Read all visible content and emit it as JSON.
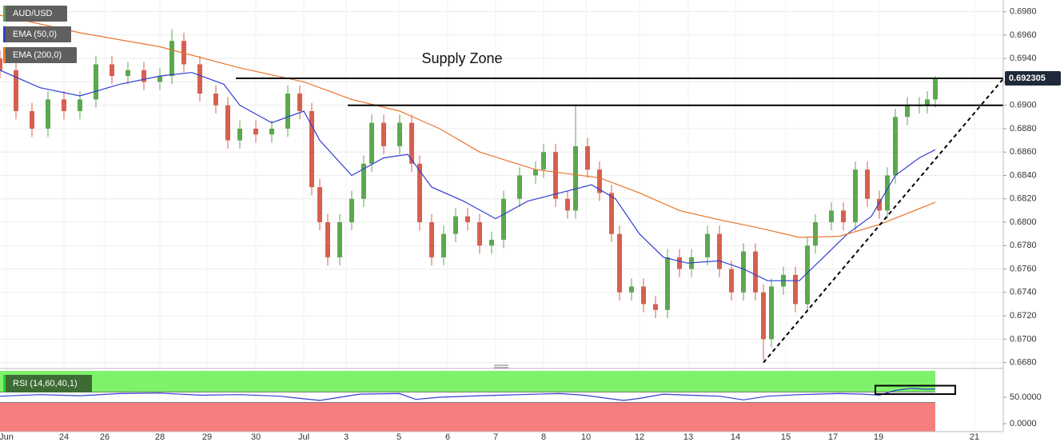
{
  "chart_data": [
    {
      "type": "candlestick",
      "xlim": [
        0,
        125.5
      ],
      "ylim": [
        0.6677,
        0.699
      ],
      "xticks": [
        {
          "value": 0.8,
          "label": "Jun"
        },
        {
          "value": 8,
          "label": "24"
        },
        {
          "value": 13.1,
          "label": "26"
        },
        {
          "value": 20,
          "label": "28"
        },
        {
          "value": 25.9,
          "label": "29"
        },
        {
          "value": 32,
          "label": "30"
        },
        {
          "value": 38,
          "label": "Jul"
        },
        {
          "value": 43.3,
          "label": "3"
        },
        {
          "value": 49.9,
          "label": "5"
        },
        {
          "value": 56,
          "label": "6"
        },
        {
          "value": 62,
          "label": "7"
        },
        {
          "value": 68,
          "label": "8"
        },
        {
          "value": 73.3,
          "label": "10"
        },
        {
          "value": 80,
          "label": "12"
        },
        {
          "value": 86.1,
          "label": "13"
        },
        {
          "value": 92,
          "label": "14"
        },
        {
          "value": 98.3,
          "label": "15"
        },
        {
          "value": 104.2,
          "label": "17"
        },
        {
          "value": 109.9,
          "label": "19"
        },
        {
          "value": 121.9,
          "label": "21"
        }
      ],
      "yticks": [
        {
          "value": 0.668,
          "label": "0.6680"
        },
        {
          "value": 0.67,
          "label": "0.6700"
        },
        {
          "value": 0.672,
          "label": "0.6720"
        },
        {
          "value": 0.674,
          "label": "0.6740"
        },
        {
          "value": 0.676,
          "label": "0.6760"
        },
        {
          "value": 0.678,
          "label": "0.6780"
        },
        {
          "value": 0.68,
          "label": "0.6800"
        },
        {
          "value": 0.682,
          "label": "0.6820"
        },
        {
          "value": 0.684,
          "label": "0.6840"
        },
        {
          "value": 0.686,
          "label": "0.6860"
        },
        {
          "value": 0.688,
          "label": "0.6880"
        },
        {
          "value": 0.69,
          "label": "0.6900"
        },
        {
          "value": 0.692,
          "label": "0.6920"
        },
        {
          "value": 0.694,
          "label": "0.6940"
        },
        {
          "value": 0.696,
          "label": "0.6960"
        },
        {
          "value": 0.698,
          "label": "0.6980"
        }
      ],
      "grid": true,
      "last_price": 0.692305,
      "annotation": "Supply Zone",
      "levels": [
        {
          "value": 0.6923,
          "x": [
            29.5,
            125.5
          ]
        },
        {
          "value": 0.69,
          "x": [
            43.5,
            125.5
          ]
        }
      ],
      "trendline": {
        "x": [
          95.5,
          125.5
        ],
        "y": [
          0.668,
          0.69226
        ]
      },
      "candles": {
        "name": "AUD/USD",
        "up_color": "#5ca84f",
        "down_color": "#d85f4f",
        "x": [
          0,
          2,
          4,
          6,
          8,
          10,
          12,
          14,
          16,
          18,
          20,
          21.5,
          23,
          25,
          27,
          28.5,
          30,
          32,
          34,
          36,
          37.5,
          39,
          40,
          41,
          42.5,
          44,
          45.5,
          46.5,
          48,
          50,
          51.5,
          52.5,
          54,
          55.5,
          57,
          58.5,
          60,
          61.5,
          63,
          65,
          67,
          68,
          69.5,
          71,
          72,
          73.5,
          75,
          76.5,
          77.5,
          79,
          80.5,
          82,
          83.5,
          85,
          86.5,
          88.5,
          90,
          91.5,
          93,
          94.5,
          95.5,
          96.5,
          98,
          99.5,
          101,
          102,
          104,
          105.5,
          107,
          108.5,
          110,
          111,
          112,
          113.5,
          115,
          116,
          117
        ],
        "open": [
          0.694,
          0.693,
          0.6895,
          0.688,
          0.6905,
          0.6895,
          0.6905,
          0.6935,
          0.6925,
          0.693,
          0.692,
          0.6925,
          0.6955,
          0.6935,
          0.691,
          0.69,
          0.687,
          0.688,
          0.6875,
          0.688,
          0.691,
          0.6895,
          0.683,
          0.68,
          0.677,
          0.68,
          0.682,
          0.685,
          0.6885,
          0.6865,
          0.6885,
          0.685,
          0.68,
          0.677,
          0.679,
          0.6805,
          0.68,
          0.678,
          0.6785,
          0.682,
          0.684,
          0.6845,
          0.686,
          0.682,
          0.681,
          0.6865,
          0.6845,
          0.6825,
          0.679,
          0.674,
          0.6745,
          0.673,
          0.6725,
          0.677,
          0.676,
          0.677,
          0.679,
          0.676,
          0.674,
          0.6775,
          0.674,
          0.67,
          0.6745,
          0.6755,
          0.673,
          0.678,
          0.68,
          0.681,
          0.68,
          0.6845,
          0.682,
          0.681,
          0.684,
          0.689,
          0.69,
          0.69,
          0.6905
        ],
        "high": [
          0.6947,
          0.6937,
          0.6902,
          0.6912,
          0.6912,
          0.6912,
          0.6942,
          0.6942,
          0.6937,
          0.6937,
          0.6932,
          0.6965,
          0.6962,
          0.6942,
          0.6917,
          0.6907,
          0.6887,
          0.6887,
          0.6887,
          0.6917,
          0.6917,
          0.6902,
          0.6837,
          0.6807,
          0.6807,
          0.6827,
          0.6857,
          0.6892,
          0.6892,
          0.6892,
          0.6892,
          0.6857,
          0.6807,
          0.6797,
          0.6812,
          0.6812,
          0.6807,
          0.6792,
          0.6827,
          0.6847,
          0.6852,
          0.6867,
          0.6867,
          0.6827,
          0.69,
          0.6872,
          0.6852,
          0.6832,
          0.6797,
          0.6752,
          0.6752,
          0.6737,
          0.6777,
          0.6777,
          0.6777,
          0.6797,
          0.6797,
          0.6767,
          0.6782,
          0.6782,
          0.6747,
          0.6752,
          0.6762,
          0.6762,
          0.6787,
          0.6807,
          0.6817,
          0.6817,
          0.6852,
          0.6852,
          0.6827,
          0.6847,
          0.6897,
          0.6907,
          0.6907,
          0.6912,
          0.6925
        ],
        "low": [
          0.6923,
          0.6888,
          0.6873,
          0.6873,
          0.6888,
          0.6888,
          0.6898,
          0.6918,
          0.6918,
          0.6913,
          0.6913,
          0.6918,
          0.6928,
          0.6903,
          0.6893,
          0.6863,
          0.6863,
          0.6868,
          0.6868,
          0.6873,
          0.6888,
          0.6823,
          0.6793,
          0.6763,
          0.6763,
          0.6793,
          0.6813,
          0.6843,
          0.6858,
          0.6858,
          0.6843,
          0.6793,
          0.6763,
          0.6763,
          0.6783,
          0.6793,
          0.6773,
          0.6773,
          0.6778,
          0.6813,
          0.6833,
          0.6838,
          0.6813,
          0.6803,
          0.6803,
          0.6838,
          0.6818,
          0.6783,
          0.6733,
          0.6733,
          0.6723,
          0.6718,
          0.6718,
          0.6753,
          0.6753,
          0.6763,
          0.6753,
          0.6733,
          0.6733,
          0.6733,
          0.6682,
          0.6693,
          0.6738,
          0.6723,
          0.6723,
          0.6773,
          0.6793,
          0.6793,
          0.6793,
          0.6813,
          0.6803,
          0.6803,
          0.6833,
          0.6883,
          0.6893,
          0.6893,
          0.6898
        ],
        "close": [
          0.693,
          0.6895,
          0.688,
          0.6905,
          0.6895,
          0.6905,
          0.6935,
          0.6925,
          0.693,
          0.692,
          0.6925,
          0.6955,
          0.6935,
          0.691,
          0.69,
          0.687,
          0.688,
          0.6875,
          0.688,
          0.691,
          0.6895,
          0.683,
          0.68,
          0.677,
          0.68,
          0.682,
          0.685,
          0.6885,
          0.6865,
          0.6885,
          0.685,
          0.68,
          0.677,
          0.679,
          0.6805,
          0.68,
          0.678,
          0.6785,
          0.682,
          0.684,
          0.6845,
          0.686,
          0.682,
          0.681,
          0.6865,
          0.6845,
          0.6825,
          0.679,
          0.674,
          0.6745,
          0.673,
          0.6725,
          0.677,
          0.676,
          0.677,
          0.679,
          0.676,
          0.674,
          0.6775,
          0.674,
          0.67,
          0.6745,
          0.6755,
          0.673,
          0.678,
          0.68,
          0.681,
          0.68,
          0.6845,
          0.682,
          0.681,
          0.684,
          0.689,
          0.69,
          0.69,
          0.6905,
          0.6923
        ]
      },
      "series": [
        {
          "name": "EMA (50,0)",
          "color": "#2f3fcf",
          "x": [
            0,
            5,
            10,
            15,
            20,
            24,
            28,
            30,
            34,
            38,
            40,
            44,
            48,
            51,
            54,
            58,
            62,
            66,
            70,
            74,
            77,
            80,
            83,
            86,
            90,
            93,
            96,
            100,
            103,
            106,
            109,
            112,
            115,
            117
          ],
          "values": [
            0.693,
            0.6915,
            0.6908,
            0.6918,
            0.6925,
            0.6928,
            0.6918,
            0.69,
            0.6885,
            0.6895,
            0.687,
            0.684,
            0.6855,
            0.6858,
            0.683,
            0.6818,
            0.6803,
            0.6818,
            0.6825,
            0.6832,
            0.682,
            0.679,
            0.677,
            0.6765,
            0.6767,
            0.676,
            0.675,
            0.675,
            0.677,
            0.679,
            0.6805,
            0.684,
            0.6855,
            0.6862
          ]
        },
        {
          "name": "EMA (200,0)",
          "color": "#e8752b",
          "x": [
            0,
            10,
            20,
            30,
            38,
            44,
            50,
            55,
            60,
            67,
            75,
            80,
            85,
            90,
            95,
            100,
            105,
            110,
            117
          ],
          "values": [
            0.6977,
            0.6962,
            0.695,
            0.6932,
            0.692,
            0.6905,
            0.6895,
            0.688,
            0.686,
            0.6845,
            0.6838,
            0.6825,
            0.681,
            0.6802,
            0.6795,
            0.6787,
            0.6788,
            0.6798,
            0.6817
          ]
        }
      ]
    },
    {
      "type": "line",
      "xlim": [
        0,
        125.5
      ],
      "ylim": [
        -15,
        100
      ],
      "yticks": [
        {
          "value": 50,
          "label": "50.0000"
        },
        {
          "value": 0,
          "label": "0.0000"
        }
      ],
      "upper": 60,
      "lower": 40,
      "highlight": {
        "x": [
          109.5,
          119.5
        ],
        "y": [
          56,
          72
        ]
      },
      "series": [
        {
          "name": "RSI (14,60,40,1)",
          "color": "#2f3fcf",
          "x": [
            0,
            5,
            10,
            15,
            20,
            25,
            30,
            35,
            40,
            45,
            50,
            52,
            55,
            60,
            65,
            70,
            73,
            76,
            78,
            80,
            83,
            86,
            90,
            93,
            96,
            100,
            105,
            108,
            110,
            112,
            114,
            116,
            117
          ],
          "values": [
            52,
            55,
            53,
            57,
            58,
            54,
            55,
            52,
            44,
            56,
            57,
            46,
            50,
            53,
            55,
            57,
            54,
            48,
            44,
            48,
            56,
            54,
            52,
            45,
            52,
            55,
            57,
            56,
            54,
            63,
            67,
            65,
            66
          ]
        }
      ]
    }
  ]
}
